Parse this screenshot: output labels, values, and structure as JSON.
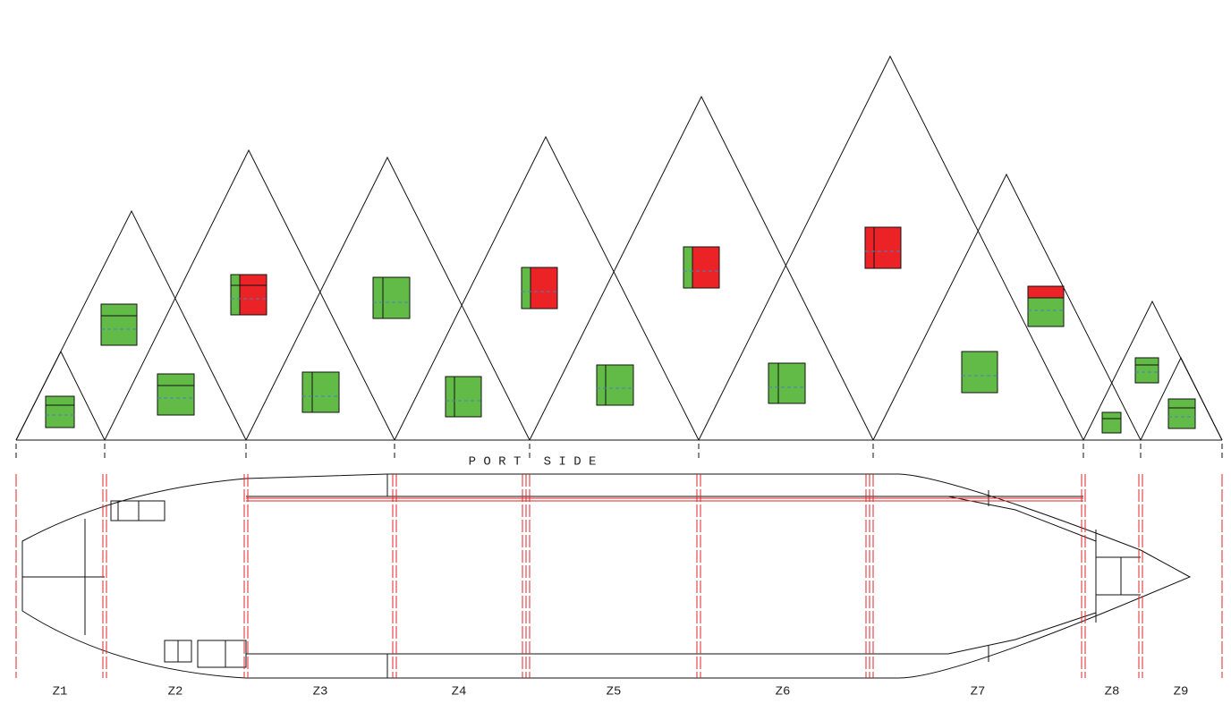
{
  "side_label": "P O R T   S I D E",
  "zones": [
    "Z1",
    "Z2",
    "Z3",
    "Z4",
    "Z5",
    "Z6",
    "Z7",
    "Z8",
    "Z9"
  ]
}
